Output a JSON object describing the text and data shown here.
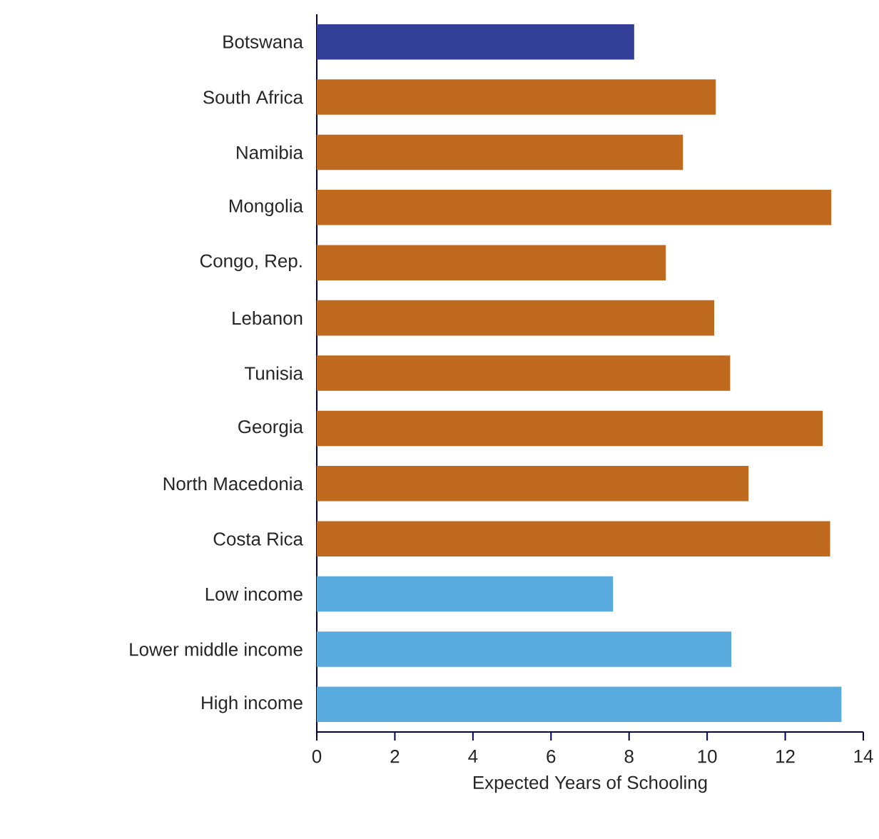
{
  "chart_data": {
    "type": "bar",
    "orientation": "horizontal",
    "xlabel": "Expected Years of Schooling",
    "categories": [
      "Botswana",
      "South Africa",
      "Namibia",
      "Mongolia",
      "Congo, Rep.",
      "Lebanon",
      "Tunisia",
      "Georgia",
      "North Macedonia",
      "Costa Rica",
      "Low income",
      "Lower middle income",
      "High income"
    ],
    "values": [
      8.13,
      10.22,
      9.38,
      13.18,
      8.94,
      10.18,
      10.59,
      12.96,
      11.06,
      13.15,
      7.59,
      10.62,
      13.44
    ],
    "colors": [
      "#333f96",
      "#c06a1f",
      "#c06a1f",
      "#c06a1f",
      "#c06a1f",
      "#c06a1f",
      "#c06a1f",
      "#c06a1f",
      "#c06a1f",
      "#c06a1f",
      "#5aabdd",
      "#5aabdd",
      "#5aabdd"
    ],
    "xlim": [
      0,
      14
    ],
    "xticks": [
      0,
      2,
      4,
      6,
      8,
      10,
      12,
      14
    ]
  }
}
